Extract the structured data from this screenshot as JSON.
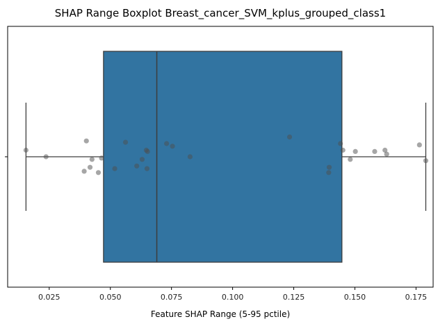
{
  "chart_data": {
    "type": "boxplot",
    "title": "SHAP Range Boxplot Breast_cancer_SVM_kplus_grouped_class1",
    "xlabel": "Feature SHAP Range (5-95 pctile)",
    "ylabel": "",
    "xlim": [
      0.008,
      0.182
    ],
    "xticks": [
      0.025,
      0.05,
      0.075,
      0.1,
      0.125,
      0.15,
      0.175
    ],
    "xtick_labels": [
      "0.025",
      "0.050",
      "0.075",
      "0.100",
      "0.125",
      "0.150",
      "0.175"
    ],
    "box": {
      "whisker_low": 0.0155,
      "q1": 0.0472,
      "median": 0.069,
      "q3": 0.1447,
      "whisker_high": 0.179,
      "color": "#3274a1",
      "edge_color": "#3d3d3d"
    },
    "points": [
      {
        "x": 0.0155,
        "jitter": 0.05
      },
      {
        "x": 0.0237,
        "jitter": 0.0
      },
      {
        "x": 0.0393,
        "jitter": -0.11
      },
      {
        "x": 0.0402,
        "jitter": 0.12
      },
      {
        "x": 0.0417,
        "jitter": -0.08
      },
      {
        "x": 0.0425,
        "jitter": -0.02
      },
      {
        "x": 0.0451,
        "jitter": -0.12
      },
      {
        "x": 0.0464,
        "jitter": -0.01
      },
      {
        "x": 0.0518,
        "jitter": -0.09
      },
      {
        "x": 0.0562,
        "jitter": 0.11
      },
      {
        "x": 0.0608,
        "jitter": -0.07
      },
      {
        "x": 0.063,
        "jitter": -0.02
      },
      {
        "x": 0.0647,
        "jitter": 0.05
      },
      {
        "x": 0.065,
        "jitter": -0.09
      },
      {
        "x": 0.0652,
        "jitter": 0.04
      },
      {
        "x": 0.073,
        "jitter": 0.1
      },
      {
        "x": 0.0754,
        "jitter": 0.08
      },
      {
        "x": 0.0826,
        "jitter": 0.0
      },
      {
        "x": 0.1233,
        "jitter": 0.15
      },
      {
        "x": 0.1393,
        "jitter": -0.12
      },
      {
        "x": 0.1395,
        "jitter": -0.08
      },
      {
        "x": 0.1441,
        "jitter": 0.1
      },
      {
        "x": 0.1451,
        "jitter": 0.05
      },
      {
        "x": 0.1481,
        "jitter": -0.02
      },
      {
        "x": 0.1502,
        "jitter": 0.04
      },
      {
        "x": 0.1581,
        "jitter": 0.04
      },
      {
        "x": 0.1623,
        "jitter": 0.05
      },
      {
        "x": 0.163,
        "jitter": 0.02
      },
      {
        "x": 0.1764,
        "jitter": 0.09
      },
      {
        "x": 0.179,
        "jitter": -0.03
      }
    ],
    "point_color": "#4d4d4d",
    "grid": false
  }
}
